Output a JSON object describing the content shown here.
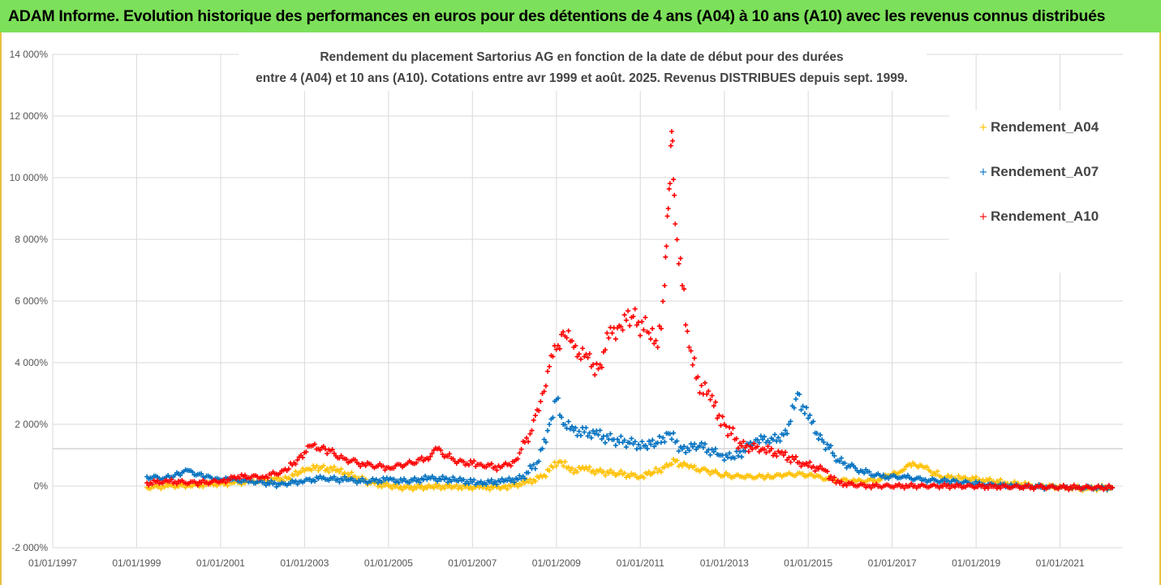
{
  "banner": {
    "title": "ADAM Informe. Evolution historique des performances en euros pour des détentions de 4 ans (A04) à 10 ans (A10) avec les revenus connus distribués"
  },
  "colors": {
    "banner_bg": "#7CE05A",
    "A04": "#FFC000",
    "A07": "#0070C0",
    "A10": "#FF0000",
    "grid": "#D9D9D9"
  },
  "chart_data": {
    "type": "scatter",
    "title_lines": [
      "Rendement du placement Sartorius AG en fonction de la date de début pour des durées",
      "entre 4 (A04) et 10 ans (A10). Cotations entre avr 1999 et août. 2025. Revenus DISTRIBUES depuis sept. 1999."
    ],
    "xlabel": "",
    "ylabel": "",
    "x_ticks": [
      "01/01/1997",
      "01/01/1999",
      "01/01/2001",
      "01/01/2003",
      "01/01/2005",
      "01/01/2007",
      "01/01/2009",
      "01/01/2011",
      "01/01/2013",
      "01/01/2015",
      "01/01/2017",
      "01/01/2019",
      "01/01/2021"
    ],
    "xlim": [
      "1997-01-01",
      "2022-07-01"
    ],
    "y_ticks": [
      -2000,
      0,
      2000,
      4000,
      6000,
      8000,
      10000,
      12000,
      14000
    ],
    "y_tick_labels": [
      "-2 000%",
      "0%",
      "2 000%",
      "4 000%",
      "6 000%",
      "8 000%",
      "10 000%",
      "12 000%",
      "14 000%"
    ],
    "ylim": [
      -2000,
      14000
    ],
    "grid": true,
    "legend_position": "top-right",
    "series": [
      {
        "name": "Rendement_A04",
        "color": "#FFC000",
        "points": [
          [
            "1999-04-01",
            -50
          ],
          [
            "1999-10-01",
            0
          ],
          [
            "2000-04-01",
            20
          ],
          [
            "2000-10-01",
            50
          ],
          [
            "2001-04-01",
            100
          ],
          [
            "2001-10-01",
            150
          ],
          [
            "2002-04-01",
            200
          ],
          [
            "2002-08-01",
            250
          ],
          [
            "2002-12-01",
            450
          ],
          [
            "2003-02-01",
            550
          ],
          [
            "2003-06-01",
            600
          ],
          [
            "2003-10-01",
            500
          ],
          [
            "2004-03-01",
            300
          ],
          [
            "2004-08-01",
            100
          ],
          [
            "2005-01-01",
            0
          ],
          [
            "2005-06-01",
            -50
          ],
          [
            "2006-01-01",
            -30
          ],
          [
            "2006-08-01",
            -20
          ],
          [
            "2007-03-01",
            -50
          ],
          [
            "2007-10-01",
            -30
          ],
          [
            "2008-04-01",
            100
          ],
          [
            "2008-09-01",
            300
          ],
          [
            "2008-12-01",
            600
          ],
          [
            "2009-02-01",
            800
          ],
          [
            "2009-05-01",
            500
          ],
          [
            "2009-09-01",
            550
          ],
          [
            "2010-02-01",
            450
          ],
          [
            "2010-07-01",
            400
          ],
          [
            "2011-01-01",
            300
          ],
          [
            "2011-05-01",
            450
          ],
          [
            "2011-09-01",
            650
          ],
          [
            "2011-11-01",
            800
          ],
          [
            "2012-03-01",
            600
          ],
          [
            "2012-08-01",
            500
          ],
          [
            "2013-01-01",
            350
          ],
          [
            "2013-06-01",
            300
          ],
          [
            "2014-01-01",
            300
          ],
          [
            "2014-06-01",
            350
          ],
          [
            "2014-11-01",
            400
          ],
          [
            "2015-03-01",
            300
          ],
          [
            "2015-09-01",
            200
          ],
          [
            "2016-03-01",
            150
          ],
          [
            "2016-09-01",
            200
          ],
          [
            "2017-01-01",
            400
          ],
          [
            "2017-04-01",
            500
          ],
          [
            "2017-07-01",
            750
          ],
          [
            "2017-10-01",
            600
          ],
          [
            "2018-03-01",
            300
          ],
          [
            "2018-09-01",
            250
          ],
          [
            "2019-03-01",
            200
          ],
          [
            "2019-09-01",
            100
          ],
          [
            "2020-06-01",
            0
          ],
          [
            "2021-03-01",
            -50
          ],
          [
            "2021-09-01",
            -80
          ],
          [
            "2022-04-01",
            -50
          ]
        ]
      },
      {
        "name": "Rendement_A07",
        "color": "#0070C0",
        "points": [
          [
            "1999-04-01",
            300
          ],
          [
            "1999-09-01",
            250
          ],
          [
            "2000-01-01",
            400
          ],
          [
            "2000-04-01",
            500
          ],
          [
            "2000-08-01",
            300
          ],
          [
            "2000-12-01",
            250
          ],
          [
            "2001-04-01",
            200
          ],
          [
            "2001-10-01",
            150
          ],
          [
            "2002-06-01",
            50
          ],
          [
            "2002-12-01",
            150
          ],
          [
            "2003-06-01",
            250
          ],
          [
            "2004-01-01",
            200
          ],
          [
            "2004-06-01",
            150
          ],
          [
            "2005-01-01",
            200
          ],
          [
            "2005-06-01",
            150
          ],
          [
            "2006-01-01",
            250
          ],
          [
            "2006-08-01",
            200
          ],
          [
            "2007-03-01",
            100
          ],
          [
            "2007-10-01",
            150
          ],
          [
            "2008-03-01",
            250
          ],
          [
            "2008-08-01",
            800
          ],
          [
            "2008-11-01",
            2000
          ],
          [
            "2009-01-01",
            2800
          ],
          [
            "2009-03-01",
            2000
          ],
          [
            "2009-06-01",
            1800
          ],
          [
            "2009-12-01",
            1700
          ],
          [
            "2010-05-01",
            1500
          ],
          [
            "2010-10-01",
            1400
          ],
          [
            "2011-02-01",
            1300
          ],
          [
            "2011-06-01",
            1400
          ],
          [
            "2011-09-01",
            1700
          ],
          [
            "2012-01-01",
            1200
          ],
          [
            "2012-06-01",
            1300
          ],
          [
            "2012-12-01",
            1000
          ],
          [
            "2013-04-01",
            900
          ],
          [
            "2013-10-01",
            1500
          ],
          [
            "2014-03-01",
            1500
          ],
          [
            "2014-07-01",
            1700
          ],
          [
            "2014-10-01",
            3000
          ],
          [
            "2015-01-01",
            2200
          ],
          [
            "2015-05-01",
            1500
          ],
          [
            "2015-10-01",
            800
          ],
          [
            "2016-04-01",
            500
          ],
          [
            "2016-10-01",
            300
          ],
          [
            "2017-04-01",
            300
          ],
          [
            "2017-10-01",
            200
          ],
          [
            "2018-06-01",
            150
          ],
          [
            "2019-03-01",
            50
          ],
          [
            "2019-12-01",
            0
          ],
          [
            "2020-09-01",
            -30
          ],
          [
            "2021-06-01",
            -50
          ],
          [
            "2022-04-01",
            -60
          ]
        ]
      },
      {
        "name": "Rendement_A10",
        "color": "#FF0000",
        "points": [
          [
            "1999-04-01",
            100
          ],
          [
            "1999-10-01",
            150
          ],
          [
            "2000-06-01",
            100
          ],
          [
            "2001-01-01",
            150
          ],
          [
            "2001-06-01",
            300
          ],
          [
            "2002-01-01",
            300
          ],
          [
            "2002-08-01",
            500
          ],
          [
            "2002-12-01",
            1000
          ],
          [
            "2003-03-01",
            1300
          ],
          [
            "2003-07-01",
            1200
          ],
          [
            "2003-12-01",
            900
          ],
          [
            "2004-06-01",
            700
          ],
          [
            "2005-01-01",
            600
          ],
          [
            "2005-06-01",
            700
          ],
          [
            "2005-12-01",
            900
          ],
          [
            "2006-03-01",
            1200
          ],
          [
            "2006-08-01",
            800
          ],
          [
            "2007-03-01",
            700
          ],
          [
            "2007-09-01",
            600
          ],
          [
            "2008-01-01",
            800
          ],
          [
            "2008-06-01",
            1800
          ],
          [
            "2008-09-01",
            3000
          ],
          [
            "2008-12-01",
            4200
          ],
          [
            "2009-03-01",
            5000
          ],
          [
            "2009-06-01",
            4500
          ],
          [
            "2009-09-01",
            4200
          ],
          [
            "2010-01-01",
            3800
          ],
          [
            "2010-04-01",
            4800
          ],
          [
            "2010-07-01",
            5200
          ],
          [
            "2010-11-01",
            5500
          ],
          [
            "2011-03-01",
            5000
          ],
          [
            "2011-06-01",
            4500
          ],
          [
            "2011-08-01",
            6500
          ],
          [
            "2011-09-01",
            9000
          ],
          [
            "2011-10-01",
            11500
          ],
          [
            "2011-11-01",
            8500
          ],
          [
            "2012-01-01",
            6500
          ],
          [
            "2012-03-01",
            4500
          ],
          [
            "2012-05-01",
            3500
          ],
          [
            "2012-09-01",
            2800
          ],
          [
            "2013-01-01",
            2000
          ],
          [
            "2013-06-01",
            1300
          ],
          [
            "2013-12-01",
            1200
          ],
          [
            "2014-06-01",
            1000
          ],
          [
            "2014-12-01",
            700
          ],
          [
            "2015-06-01",
            500
          ],
          [
            "2015-09-01",
            100
          ],
          [
            "2016-06-01",
            0
          ],
          [
            "2017-06-01",
            0
          ],
          [
            "2018-06-01",
            0
          ],
          [
            "2019-06-01",
            -20
          ],
          [
            "2020-06-01",
            -30
          ],
          [
            "2021-06-01",
            -50
          ],
          [
            "2022-04-01",
            -50
          ]
        ]
      }
    ]
  }
}
